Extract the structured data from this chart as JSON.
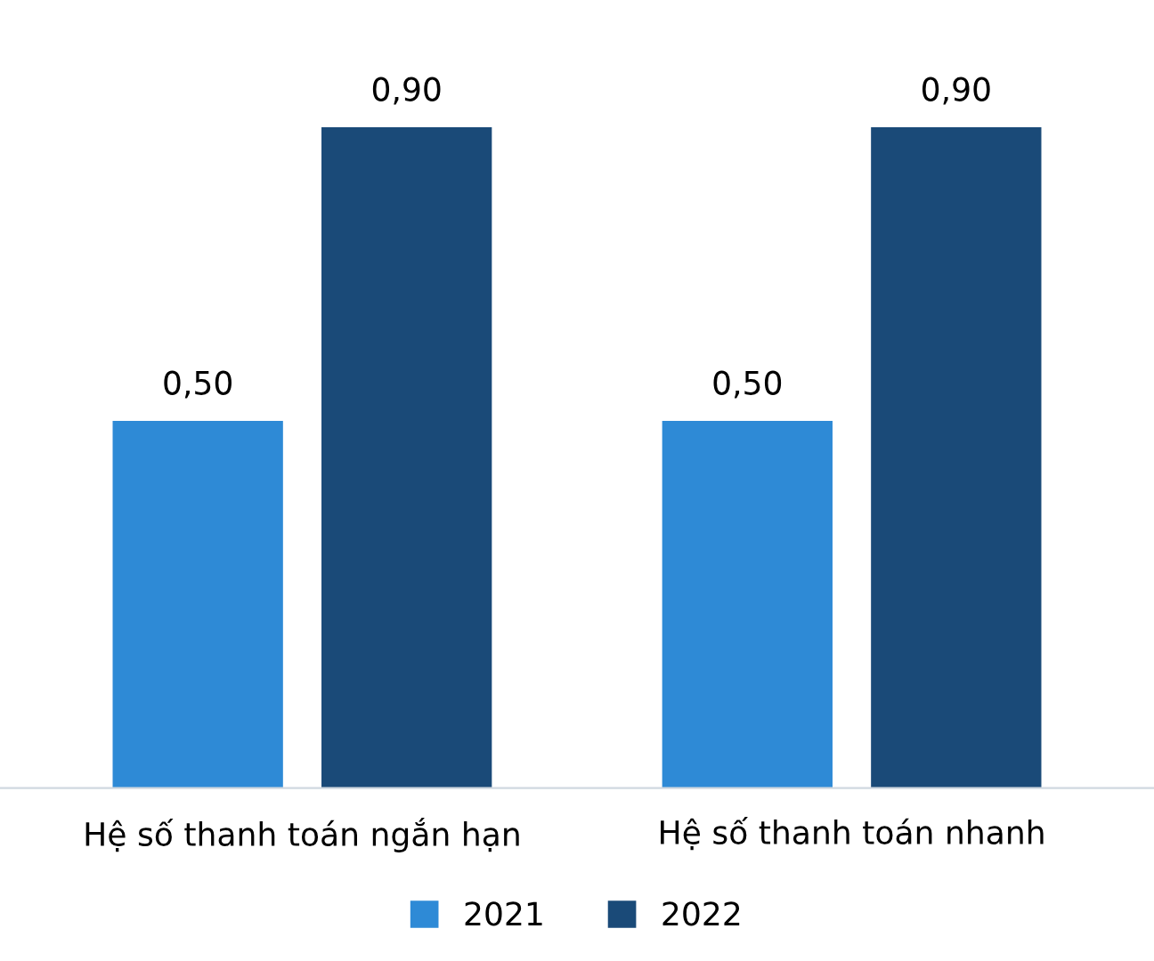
{
  "chart_data": {
    "type": "bar",
    "categories": [
      "Hệ số thanh toán ngắn hạn",
      "Hệ số thanh toán nhanh"
    ],
    "series": [
      {
        "name": "2021",
        "color": "#2e8ad6",
        "values": [
          0.5,
          0.5
        ],
        "value_labels": [
          "0,50",
          "0,50"
        ]
      },
      {
        "name": "2022",
        "color": "#1a4a78",
        "values": [
          0.9,
          0.9
        ],
        "value_labels": [
          "0,90",
          "0,90"
        ]
      }
    ],
    "legend": "bottom",
    "grid": false
  }
}
